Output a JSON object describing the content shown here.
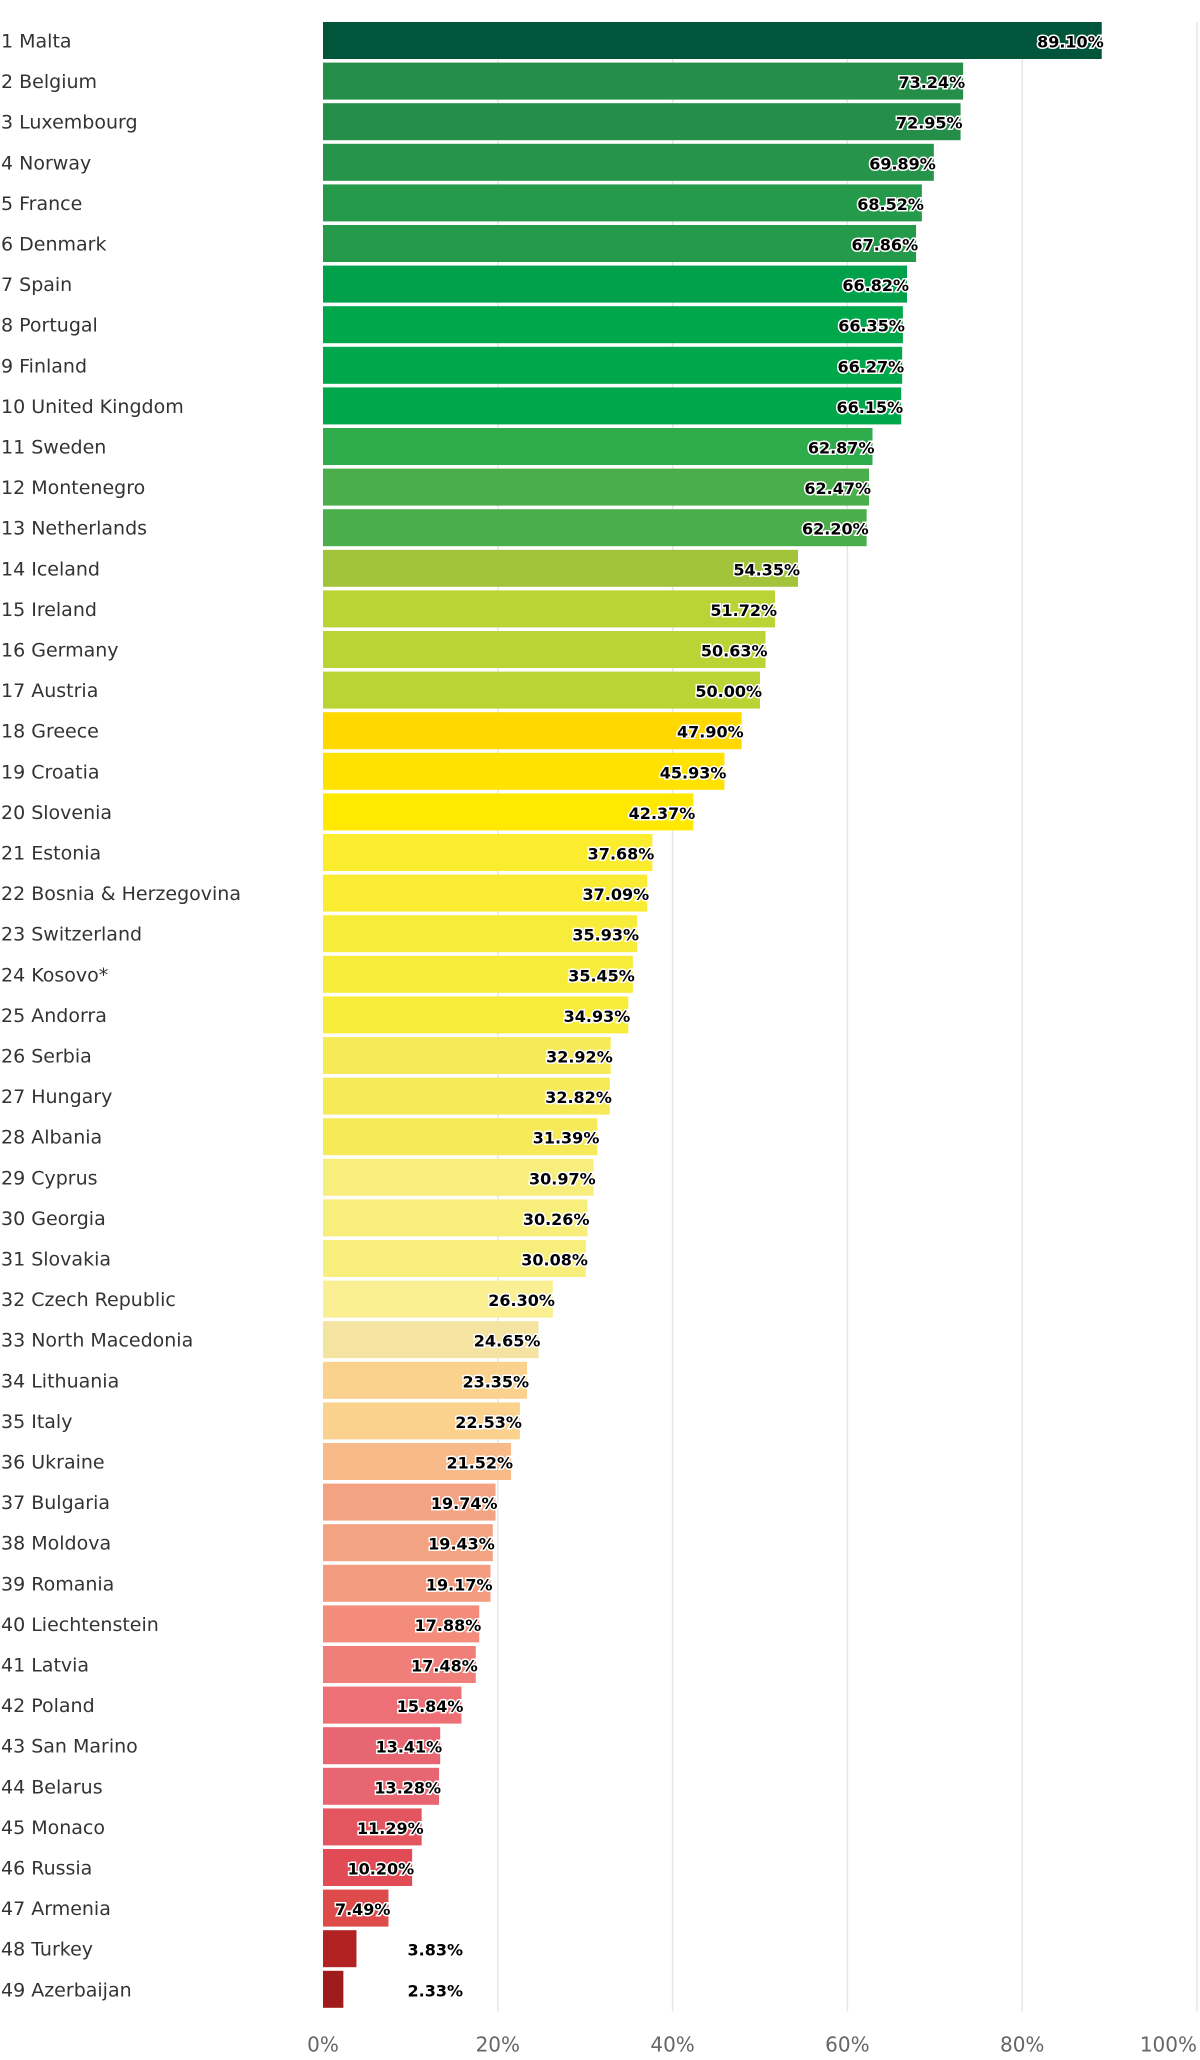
{
  "chart_data": {
    "type": "bar",
    "orientation": "horizontal",
    "title": "",
    "xlabel": "",
    "ylabel": "",
    "xlim": [
      0,
      100
    ],
    "grid": true,
    "legend": "none",
    "x_ticks": [
      "0%",
      "20%",
      "40%",
      "60%",
      "80%",
      "100%"
    ],
    "x_tick_values": [
      0,
      20,
      40,
      60,
      80,
      100
    ],
    "categories": [
      "1 Malta",
      "2 Belgium",
      "3 Luxembourg",
      "4 Norway",
      "5 France",
      "6 Denmark",
      "7 Spain",
      "8 Portugal",
      "9 Finland",
      "10 United Kingdom",
      "11 Sweden",
      "12 Montenegro",
      "13 Netherlands",
      "14 Iceland",
      "15 Ireland",
      "16 Germany",
      "17 Austria",
      "18 Greece",
      "19 Croatia",
      "20 Slovenia",
      "21 Estonia",
      "22 Bosnia & Herzegovina",
      "23 Switzerland",
      "24 Kosovo*",
      "25 Andorra",
      "26 Serbia",
      "27 Hungary",
      "28 Albania",
      "29 Cyprus",
      "30 Georgia",
      "31 Slovakia",
      "32 Czech Republic",
      "33 North Macedonia",
      "34 Lithuania",
      "35 Italy",
      "36 Ukraine",
      "37 Bulgaria",
      "38 Moldova",
      "39 Romania",
      "40 Liechtenstein",
      "41 Latvia",
      "42 Poland",
      "43 San Marino",
      "44 Belarus",
      "45 Monaco",
      "46 Russia",
      "47 Armenia",
      "48 Turkey",
      "49 Azerbaijan"
    ],
    "values": [
      89.1,
      73.24,
      72.95,
      69.89,
      68.52,
      67.86,
      66.82,
      66.35,
      66.27,
      66.15,
      62.87,
      62.47,
      62.2,
      54.35,
      51.72,
      50.63,
      50.0,
      47.9,
      45.93,
      42.37,
      37.68,
      37.09,
      35.93,
      35.45,
      34.93,
      32.92,
      32.82,
      31.39,
      30.97,
      30.26,
      30.08,
      26.3,
      24.65,
      23.35,
      22.53,
      21.52,
      19.74,
      19.43,
      19.17,
      17.88,
      17.48,
      15.84,
      13.41,
      13.28,
      11.29,
      10.2,
      7.49,
      3.83,
      2.33
    ],
    "value_labels": [
      "89.10%",
      "73.24%",
      "72.95%",
      "69.89%",
      "68.52%",
      "67.86%",
      "66.82%",
      "66.35%",
      "66.27%",
      "66.15%",
      "62.87%",
      "62.47%",
      "62.20%",
      "54.35%",
      "51.72%",
      "50.63%",
      "50.00%",
      "47.90%",
      "45.93%",
      "42.37%",
      "37.68%",
      "37.09%",
      "35.93%",
      "35.45%",
      "34.93%",
      "32.92%",
      "32.82%",
      "31.39%",
      "30.97%",
      "30.26%",
      "30.08%",
      "26.30%",
      "24.65%",
      "23.35%",
      "22.53%",
      "21.52%",
      "19.74%",
      "19.43%",
      "19.17%",
      "17.88%",
      "17.48%",
      "15.84%",
      "13.41%",
      "13.28%",
      "11.29%",
      "10.20%",
      "7.49%",
      "3.83%",
      "2.33%"
    ],
    "colors": [
      "#00553a",
      "#258f4a",
      "#258f4a",
      "#26944b",
      "#269a4b",
      "#269a4b",
      "#00a14a",
      "#00a84b",
      "#00a84b",
      "#00a84b",
      "#2eac4b",
      "#4aae4a",
      "#4aae4a",
      "#a1c43a",
      "#b9d434",
      "#b9d434",
      "#b9d434",
      "#ffd800",
      "#ffe200",
      "#ffe900",
      "#fbec2e",
      "#f9ec33",
      "#f8ec3b",
      "#f8ec3b",
      "#f8ec3b",
      "#f6ea58",
      "#f6ea58",
      "#f6ea58",
      "#f8ee7c",
      "#f8ee7c",
      "#f8ee7c",
      "#faef92",
      "#f5e3a1",
      "#fad28e",
      "#fad28e",
      "#f8ba88",
      "#f4a382",
      "#f4a382",
      "#f49c80",
      "#f38c7b",
      "#f17f79",
      "#ec7076",
      "#e86672",
      "#e86672",
      "#e3555f",
      "#e14b55",
      "#dd4b4b",
      "#b22222",
      "#a01b1b"
    ]
  }
}
